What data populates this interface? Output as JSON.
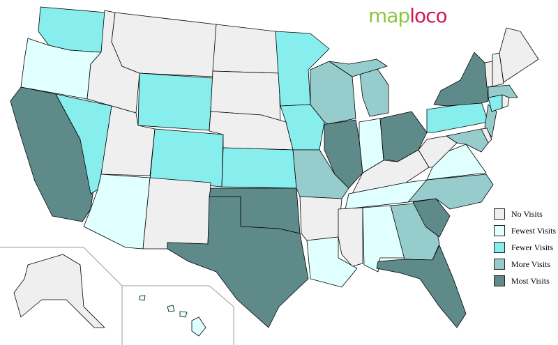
{
  "logo": {
    "part1": "map",
    "part2": "loco"
  },
  "colors": {
    "none": "#efefef",
    "fewest": "#e0ffff",
    "fewer": "#88eded",
    "more": "#96cccc",
    "most": "#5f8a8a"
  },
  "legend": [
    {
      "key": "none",
      "label": "No Visits"
    },
    {
      "key": "fewest",
      "label": "Fewest Visits"
    },
    {
      "key": "fewer",
      "label": "Fewer Visits"
    },
    {
      "key": "more",
      "label": "More Visits"
    },
    {
      "key": "most",
      "label": "Most Visits"
    }
  ],
  "states": {
    "WA": "fewer",
    "OR": "fewest",
    "CA": "most",
    "NV": "fewer",
    "ID": "none",
    "MT": "none",
    "WY": "fewer",
    "UT": "none",
    "CO": "fewer",
    "AZ": "fewest",
    "NM": "none",
    "ND": "none",
    "SD": "none",
    "NE": "none",
    "KS": "fewer",
    "OK": "most",
    "TX": "most",
    "MN": "fewer",
    "IA": "fewer",
    "MO": "more",
    "AR": "none",
    "LA": "fewest",
    "WI": "more",
    "IL": "most",
    "MI": "more",
    "IN": "fewest",
    "OH": "most",
    "KY": "none",
    "TN": "fewest",
    "MS": "none",
    "AL": "fewest",
    "GA": "more",
    "FL": "most",
    "SC": "most",
    "NC": "more",
    "VA": "fewest",
    "WV": "none",
    "PA": "fewer",
    "NY": "most",
    "NJ": "more",
    "MD": "more",
    "DE": "none",
    "CT": "fewer",
    "RI": "none",
    "MA": "more",
    "VT": "none",
    "NH": "none",
    "ME": "none",
    "AK": "none",
    "HI": "fewest"
  }
}
